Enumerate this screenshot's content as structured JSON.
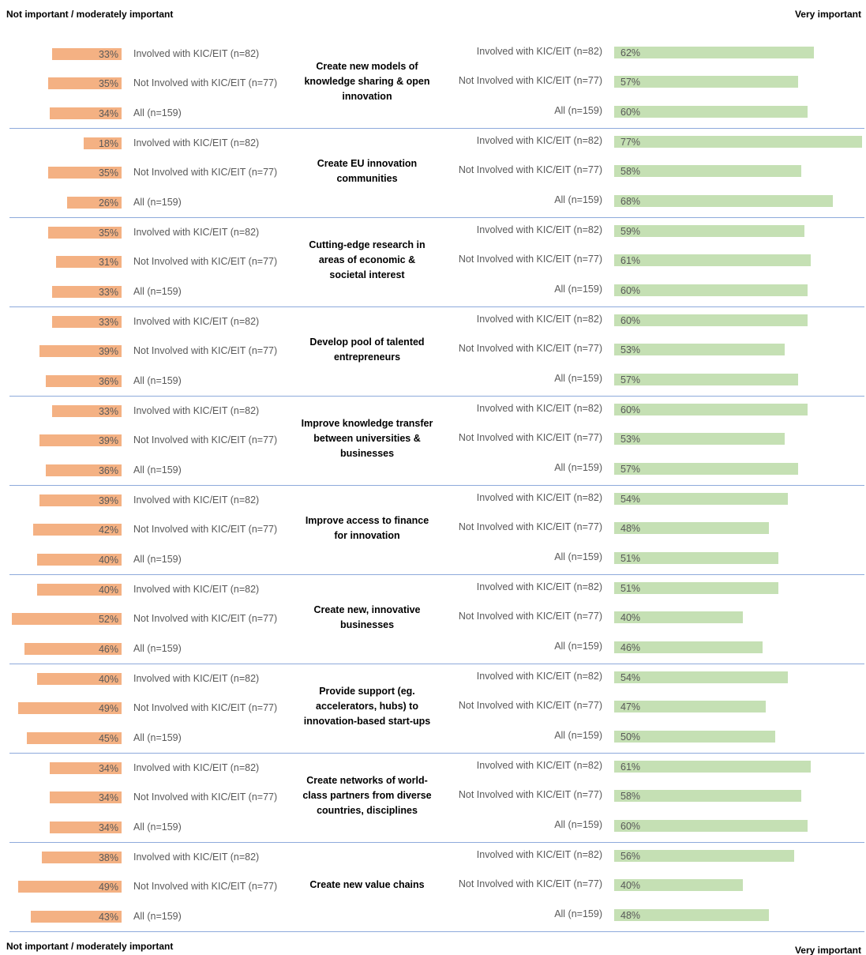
{
  "chart_data": {
    "type": "diverging-bar",
    "groups": [
      "Create new models of knowledge sharing & open innovation",
      "Create EU innovation communities",
      "Cutting-edge research in areas of economic & societal interest",
      "Develop pool of talented entrepreneurs",
      "Improve knowledge transfer between universities & businesses",
      "Improve access to finance for innovation",
      "Create new, innovative businesses",
      "Provide support (eg. accelerators, hubs) to innovation-based start-ups",
      "Create networks of world-class partners from diverse countries, disciplines",
      "Create new value chains"
    ],
    "categories": [
      "Involved with KIC/EIT (n=82)",
      "Not Involved with KIC/EIT (n=77)",
      "All (n=159)",
      "Involved with KIC/EIT (n=82)",
      "Not Involved with KIC/EIT (n=77)",
      "All (n=159)",
      "Involved with KIC/EIT (n=82)",
      "Not Involved with KIC/EIT (n=77)",
      "All (n=159)",
      "Involved with KIC/EIT (n=82)",
      "Not Involved with KIC/EIT (n=77)",
      "All (n=159)",
      "Involved with KIC/EIT (n=82)",
      "Not Involved with KIC/EIT (n=77)",
      "All (n=159)",
      "Involved with KIC/EIT (n=82)",
      "Not Involved with KIC/EIT (n=77)",
      "All (n=159)",
      "Involved with KIC/EIT (n=82)",
      "Not Involved with KIC/EIT (n=77)",
      "All (n=159)",
      "Involved with KIC/EIT (n=82)",
      "Not Involved with KIC/EIT (n=77)",
      "All (n=159)",
      "Involved with KIC/EIT (n=82)",
      "Not Involved with KIC/EIT (n=77)",
      "All (n=159)",
      "Involved with KIC/EIT (n=82)",
      "Not Involved with KIC/EIT (n=77)",
      "All (n=159)"
    ],
    "series": [
      {
        "name": "Not important / moderately important",
        "color": "#f4b183",
        "values": [
          33,
          35,
          34,
          18,
          35,
          26,
          35,
          31,
          33,
          33,
          39,
          36,
          33,
          39,
          36,
          39,
          42,
          40,
          40,
          52,
          46,
          40,
          49,
          45,
          34,
          34,
          34,
          38,
          49,
          43
        ],
        "value_labels": [
          "33%",
          "35%",
          "34%",
          "18%",
          "35%",
          "26%",
          "35%",
          "31%",
          "33%",
          "33%",
          "39%",
          "36%",
          "33%",
          "39%",
          "36%",
          "39%",
          "42%",
          "40%",
          "40%",
          "52%",
          "46%",
          "40%",
          "49%",
          "45%",
          "34%",
          "34%",
          "34%",
          "38%",
          "49%",
          "43%"
        ]
      },
      {
        "name": "Very important",
        "color": "#c5e0b4",
        "values": [
          62,
          57,
          60,
          77,
          58,
          68,
          59,
          61,
          60,
          60,
          53,
          57,
          60,
          53,
          57,
          54,
          48,
          51,
          51,
          40,
          46,
          54,
          47,
          50,
          61,
          58,
          60,
          56,
          40,
          48
        ],
        "value_labels": [
          "62%",
          "57%",
          "60%",
          "77%",
          "58%",
          "68%",
          "59%",
          "61%",
          "60%",
          "60%",
          "53%",
          "57%",
          "60%",
          "53%",
          "57%",
          "54%",
          "48%",
          "51%",
          "51%",
          "40%",
          "46%",
          "54%",
          "47%",
          "50%",
          "61%",
          "58%",
          "60%",
          "56%",
          "40%",
          "48%"
        ]
      }
    ]
  }
}
